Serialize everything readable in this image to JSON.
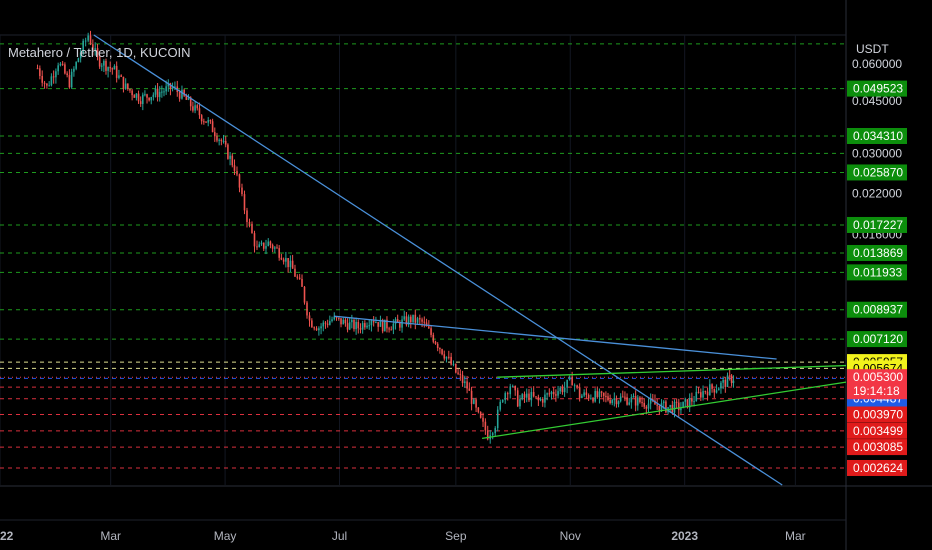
{
  "chart_data": {
    "type": "candlestick",
    "title": "Metahero / Tether, 1D, KUCOIN",
    "currency": "USDT",
    "y_scale": "log",
    "ylim": [
      0.0023,
      0.075
    ],
    "x_axis": {
      "start": "2022-01-01",
      "end": "2023-03-28",
      "ticks": [
        {
          "date": "2022-01-01",
          "label": "2022",
          "bold": true
        },
        {
          "date": "2022-03-01",
          "label": "Mar",
          "bold": false
        },
        {
          "date": "2022-05-01",
          "label": "May",
          "bold": false
        },
        {
          "date": "2022-07-01",
          "label": "Jul",
          "bold": false
        },
        {
          "date": "2022-09-01",
          "label": "Sep",
          "bold": false
        },
        {
          "date": "2022-11-01",
          "label": "Nov",
          "bold": false
        },
        {
          "date": "2023-01-01",
          "label": "2023",
          "bold": true
        },
        {
          "date": "2023-03-01",
          "label": "Mar",
          "bold": false
        }
      ]
    },
    "y_ticks": [
      "0.060000",
      "0.045000",
      "0.030000",
      "0.022000",
      "0.016000"
    ],
    "current_price": {
      "value": 0.0053,
      "label": "0.005300",
      "countdown": "19:14:18",
      "color": "#f23645"
    },
    "levels": [
      {
        "value": 0.07,
        "label": "",
        "color": "#22ab22",
        "label_bg": "#22ab22"
      },
      {
        "value": 0.049523,
        "label": "0.049523",
        "color": "#22ab22",
        "label_bg": "#0c8e0c"
      },
      {
        "value": 0.03431,
        "label": "0.034310",
        "color": "#22ab22",
        "label_bg": "#0c8e0c"
      },
      {
        "value": 0.03,
        "label": "",
        "color": "#22ab22",
        "label_bg": ""
      },
      {
        "value": 0.02587,
        "label": "0.025870",
        "color": "#22ab22",
        "label_bg": "#0c8e0c"
      },
      {
        "value": 0.017227,
        "label": "0.017227",
        "color": "#22ab22",
        "label_bg": "#0c8e0c"
      },
      {
        "value": 0.013869,
        "label": "0.013869",
        "color": "#22ab22",
        "label_bg": "#0c8e0c"
      },
      {
        "value": 0.011933,
        "label": "0.011933",
        "color": "#22ab22",
        "label_bg": "#0c8e0c"
      },
      {
        "value": 0.008937,
        "label": "0.008937",
        "color": "#22ab22",
        "label_bg": "#0c8e0c"
      },
      {
        "value": 0.00712,
        "label": "0.007120",
        "color": "#22ab22",
        "label_bg": "#0c8e0c"
      },
      {
        "value": 0.005957,
        "label": "0.005957",
        "color": "#f7f7a0",
        "label_bg": "#f2f21c"
      },
      {
        "value": 0.005674,
        "label": "0.005674",
        "color": "#f7f7a0",
        "label_bg": "#f2f21c"
      },
      {
        "value": 0.005254,
        "label": "0.005254",
        "color": "#2962ff",
        "label_bg": "#1e5ce6"
      },
      {
        "value": 0.00491,
        "label": "0.004910",
        "color": "#f23645",
        "label_bg": "#1e5ce6"
      },
      {
        "value": 0.004487,
        "label": "0.004487",
        "color": "#f23645",
        "label_bg": "#1e5ce6"
      },
      {
        "value": 0.00397,
        "label": "0.003970",
        "color": "#f23645",
        "label_bg": "#e01b1b"
      },
      {
        "value": 0.003499,
        "label": "0.003499",
        "color": "#f23645",
        "label_bg": "#e01b1b"
      },
      {
        "value": 0.003085,
        "label": "0.003085",
        "color": "#f23645",
        "label_bg": "#e01b1b"
      },
      {
        "value": 0.002624,
        "label": "0.002624",
        "color": "#f23645",
        "label_bg": "#e01b1b"
      }
    ],
    "trendlines": [
      {
        "name": "downtrend",
        "color": "#4a90d9",
        "from": {
          "date": "2022-02-20",
          "value": 0.075
        },
        "to": {
          "date": "2023-02-22",
          "value": 0.0023
        }
      },
      {
        "name": "descending-resistance",
        "color": "#4a90d9",
        "from": {
          "date": "2022-06-28",
          "value": 0.0085
        },
        "to": {
          "date": "2023-02-19",
          "value": 0.0061
        }
      },
      {
        "name": "upper-channel",
        "color": "#33cc33",
        "from": {
          "date": "2022-09-23",
          "value": 0.0053
        },
        "to": {
          "date": "2023-03-28",
          "value": 0.0058
        }
      },
      {
        "name": "rising-support",
        "color": "#33cc33",
        "from": {
          "date": "2022-09-15",
          "value": 0.0033
        },
        "to": {
          "date": "2023-03-28",
          "value": 0.0051
        }
      }
    ],
    "price_path": [
      [
        "2022-01-21",
        0.058
      ],
      [
        "2022-01-26",
        0.05
      ],
      [
        "2022-02-01",
        0.061
      ],
      [
        "2022-02-07",
        0.052
      ],
      [
        "2022-02-13",
        0.066
      ],
      [
        "2022-02-17",
        0.075
      ],
      [
        "2022-02-22",
        0.062
      ],
      [
        "2022-03-03",
        0.057
      ],
      [
        "2022-03-09",
        0.05
      ],
      [
        "2022-03-17",
        0.046
      ],
      [
        "2022-03-26",
        0.048
      ],
      [
        "2022-04-03",
        0.05
      ],
      [
        "2022-04-08",
        0.047
      ],
      [
        "2022-04-15",
        0.042
      ],
      [
        "2022-04-22",
        0.038
      ],
      [
        "2022-04-29",
        0.033
      ],
      [
        "2022-05-06",
        0.027
      ],
      [
        "2022-05-10",
        0.021
      ],
      [
        "2022-05-14",
        0.017
      ],
      [
        "2022-05-18",
        0.0142
      ],
      [
        "2022-05-24",
        0.015
      ],
      [
        "2022-05-31",
        0.0138
      ],
      [
        "2022-06-06",
        0.0122
      ],
      [
        "2022-06-11",
        0.0105
      ],
      [
        "2022-06-15",
        0.0082
      ],
      [
        "2022-06-20",
        0.0078
      ],
      [
        "2022-06-27",
        0.0083
      ],
      [
        "2022-07-03",
        0.0081
      ],
      [
        "2022-07-11",
        0.0078
      ],
      [
        "2022-07-18",
        0.0084
      ],
      [
        "2022-07-24",
        0.0079
      ],
      [
        "2022-08-01",
        0.008
      ],
      [
        "2022-08-08",
        0.0083
      ],
      [
        "2022-08-14",
        0.0081
      ],
      [
        "2022-08-20",
        0.0072
      ],
      [
        "2022-08-27",
        0.0062
      ],
      [
        "2022-09-01",
        0.0055
      ],
      [
        "2022-09-07",
        0.0049
      ],
      [
        "2022-09-13",
        0.0039
      ],
      [
        "2022-09-18",
        0.0034
      ],
      [
        "2022-09-22",
        0.0037
      ],
      [
        "2022-09-26",
        0.0046
      ],
      [
        "2022-09-30",
        0.005
      ],
      [
        "2022-10-04",
        0.0044
      ],
      [
        "2022-10-10",
        0.0046
      ],
      [
        "2022-10-15",
        0.0044
      ],
      [
        "2022-10-22",
        0.0047
      ],
      [
        "2022-10-29",
        0.0049
      ],
      [
        "2022-11-02",
        0.0052
      ],
      [
        "2022-11-06",
        0.0046
      ],
      [
        "2022-11-12",
        0.0046
      ],
      [
        "2022-11-20",
        0.0045
      ],
      [
        "2022-11-29",
        0.0045
      ],
      [
        "2022-12-07",
        0.0044
      ],
      [
        "2022-12-15",
        0.0043
      ],
      [
        "2022-12-22",
        0.0042
      ],
      [
        "2022-12-30",
        0.0042
      ],
      [
        "2023-01-06",
        0.0045
      ],
      [
        "2023-01-12",
        0.0048
      ],
      [
        "2023-01-18",
        0.0049
      ],
      [
        "2023-01-25",
        0.0052
      ],
      [
        "2023-01-28",
        0.0053
      ]
    ]
  }
}
